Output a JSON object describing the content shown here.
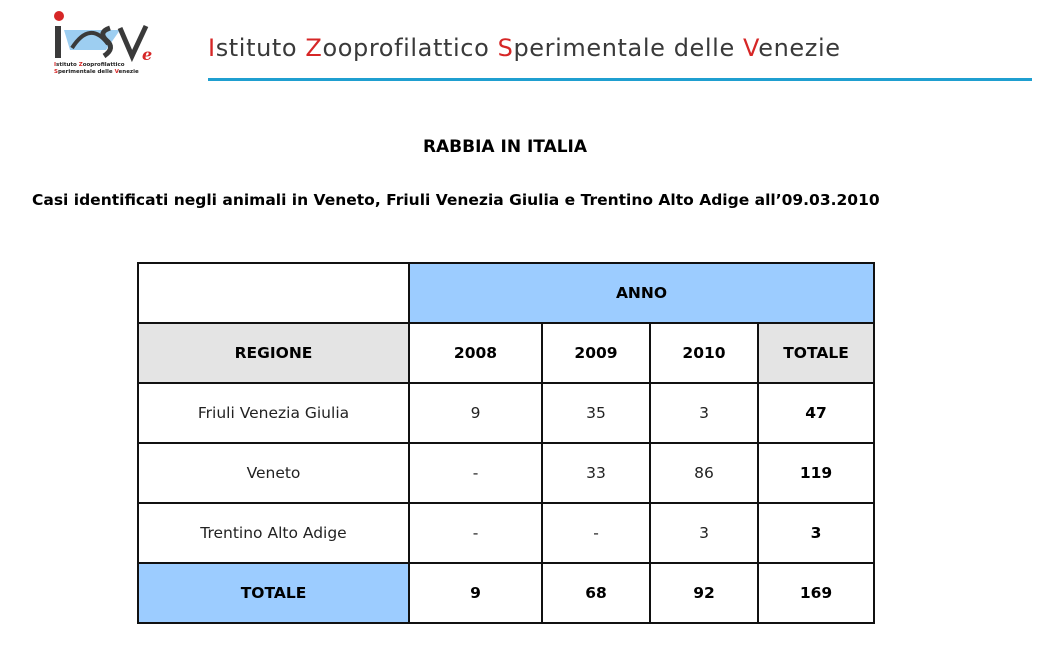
{
  "header": {
    "logo_text": "IZSVe",
    "logo_subtitle_line1": [
      {
        "t": "I",
        "red": true
      },
      {
        "t": "stituto ",
        "red": false
      },
      {
        "t": "Z",
        "red": true
      },
      {
        "t": "ooprofilattico",
        "red": false
      }
    ],
    "logo_subtitle_line2": [
      {
        "t": "S",
        "red": true
      },
      {
        "t": "perimentale delle ",
        "red": false
      },
      {
        "t": "V",
        "red": true
      },
      {
        "t": "enezie",
        "red": false
      }
    ],
    "institute_name": [
      {
        "t": "I",
        "red": true
      },
      {
        "t": "stituto ",
        "red": false
      },
      {
        "t": "Z",
        "red": true
      },
      {
        "t": "ooprofilattico ",
        "red": false
      },
      {
        "t": "S",
        "red": true
      },
      {
        "t": "perimentale delle ",
        "red": false
      },
      {
        "t": "V",
        "red": true
      },
      {
        "t": "enezie",
        "red": false
      }
    ],
    "colors": {
      "accent_red": "#d62626",
      "rule_blue": "#1f9fd0",
      "table_blue": "#9cccff"
    }
  },
  "document": {
    "title": "RABBIA IN ITALIA",
    "subtitle": "Casi identificati negli animali in Veneto, Friuli Venezia Giulia e Trentino Alto Adige all’09.03.2010"
  },
  "table": {
    "group_header": "ANNO",
    "columns": [
      "REGIONE",
      "2008",
      "2009",
      "2010",
      "TOTALE"
    ],
    "rows": [
      {
        "regione": "Friuli Venezia Giulia",
        "y2008": "9",
        "y2009": "35",
        "y2010": "3",
        "totale": "47"
      },
      {
        "regione": "Veneto",
        "y2008": "-",
        "y2009": "33",
        "y2010": "86",
        "totale": "119"
      },
      {
        "regione": "Trentino Alto Adige",
        "y2008": "-",
        "y2009": "-",
        "y2010": "3",
        "totale": "3"
      }
    ],
    "totals": {
      "label": "TOTALE",
      "y2008": "9",
      "y2009": "68",
      "y2010": "92",
      "totale": "169"
    }
  }
}
